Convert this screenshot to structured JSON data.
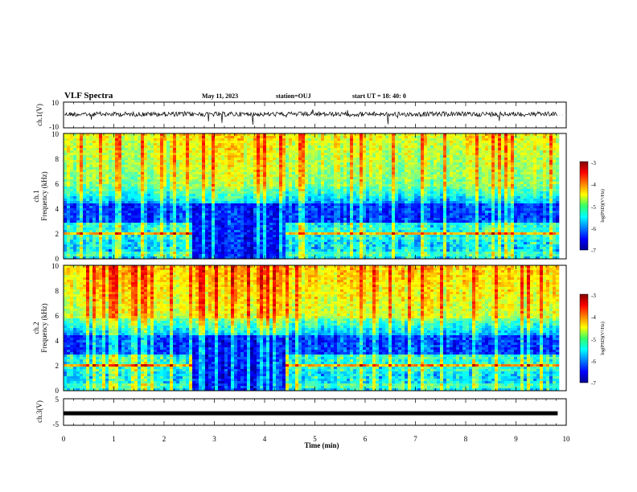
{
  "header": {
    "title": "VLF Spectra",
    "date": "May 11, 2023",
    "station": "station=OUJ",
    "start": "start  UT =   18: 40: 0"
  },
  "chart_data": [
    {
      "type": "line",
      "name": "ch1-waveform",
      "ylabel": "ch.1(V)",
      "ylim": [
        -10,
        10
      ],
      "yticks": [
        "10",
        "-10"
      ],
      "xlim": [
        0,
        10
      ]
    },
    {
      "type": "heatmap",
      "name": "ch1-spectrogram",
      "ylabel": "ch.1\nFrequency (kHz)",
      "ylim": [
        0,
        10
      ],
      "yticks": [
        "0",
        "2",
        "4",
        "6",
        "8",
        "10"
      ],
      "xlim": [
        0,
        10
      ],
      "data_end_min": 9.83,
      "quiet_interval_min": [
        2.5,
        4.4
      ],
      "colorbar": {
        "label": "log(PSD)(V²/Hz)",
        "range": [
          -7,
          -3
        ],
        "ticks": [
          "-3",
          "-4",
          "-5",
          "-6",
          "-7"
        ]
      }
    },
    {
      "type": "heatmap",
      "name": "ch2-spectrogram",
      "ylabel": "ch.2\nFrequency (kHz)",
      "ylim": [
        0,
        10
      ],
      "yticks": [
        "0",
        "2",
        "4",
        "6",
        "8",
        "10"
      ],
      "xlim": [
        0,
        10
      ],
      "data_end_min": 9.83,
      "quiet_interval_min": [
        2.5,
        4.4
      ],
      "colorbar": {
        "label": "log(PSD)(V²/Hz)",
        "range": [
          -7,
          -3
        ],
        "ticks": [
          "-3",
          "-4",
          "-5",
          "-6",
          "-7"
        ]
      }
    },
    {
      "type": "line",
      "name": "ch3-waveform",
      "ylabel": "ch.3(V)",
      "ylim": [
        -5,
        5
      ],
      "yticks": [
        "5",
        "-5"
      ],
      "value": -0.5,
      "xlim": [
        0,
        10
      ]
    }
  ],
  "xaxis": {
    "label": "Time (min)",
    "ticks": [
      "0",
      "1",
      "2",
      "3",
      "4",
      "5",
      "6",
      "7",
      "8",
      "9",
      "10"
    ]
  }
}
